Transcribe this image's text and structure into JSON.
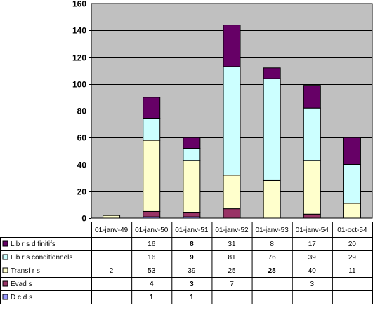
{
  "chart_data": {
    "type": "bar",
    "stacked": true,
    "categories": [
      "01-janv-49",
      "01-janv-50",
      "01-janv-51",
      "01-janv-52",
      "01-janv-53",
      "01-janv-54",
      "01-oct-54"
    ],
    "ylim": [
      0,
      160
    ],
    "yticks": [
      0,
      20,
      40,
      60,
      80,
      100,
      120,
      140,
      160
    ],
    "grid": true,
    "legend": "data-table-left",
    "series": [
      {
        "name": "D c d s",
        "color": "#9999ff",
        "values": [
          null,
          1,
          1,
          null,
          null,
          null,
          null
        ],
        "bold": [
          false,
          true,
          true,
          false,
          false,
          false,
          false
        ]
      },
      {
        "name": "Evad s",
        "color": "#993366",
        "values": [
          null,
          4,
          3,
          7,
          null,
          3,
          null
        ],
        "bold": [
          false,
          true,
          true,
          false,
          false,
          false,
          false
        ]
      },
      {
        "name": "Transf r s",
        "color": "#ffffcc",
        "values": [
          2,
          53,
          39,
          25,
          28,
          40,
          11
        ],
        "bold": [
          false,
          false,
          false,
          false,
          true,
          false,
          false
        ]
      },
      {
        "name": "Lib r s conditionnels",
        "color": "#ccffff",
        "values": [
          null,
          16,
          9,
          81,
          76,
          39,
          29
        ],
        "bold": [
          false,
          false,
          true,
          false,
          false,
          false,
          false
        ]
      },
      {
        "name": "Lib r s d finitifs",
        "color": "#660066",
        "values": [
          null,
          16,
          8,
          31,
          8,
          17,
          20
        ],
        "bold": [
          false,
          false,
          true,
          false,
          false,
          false,
          false
        ]
      }
    ]
  }
}
